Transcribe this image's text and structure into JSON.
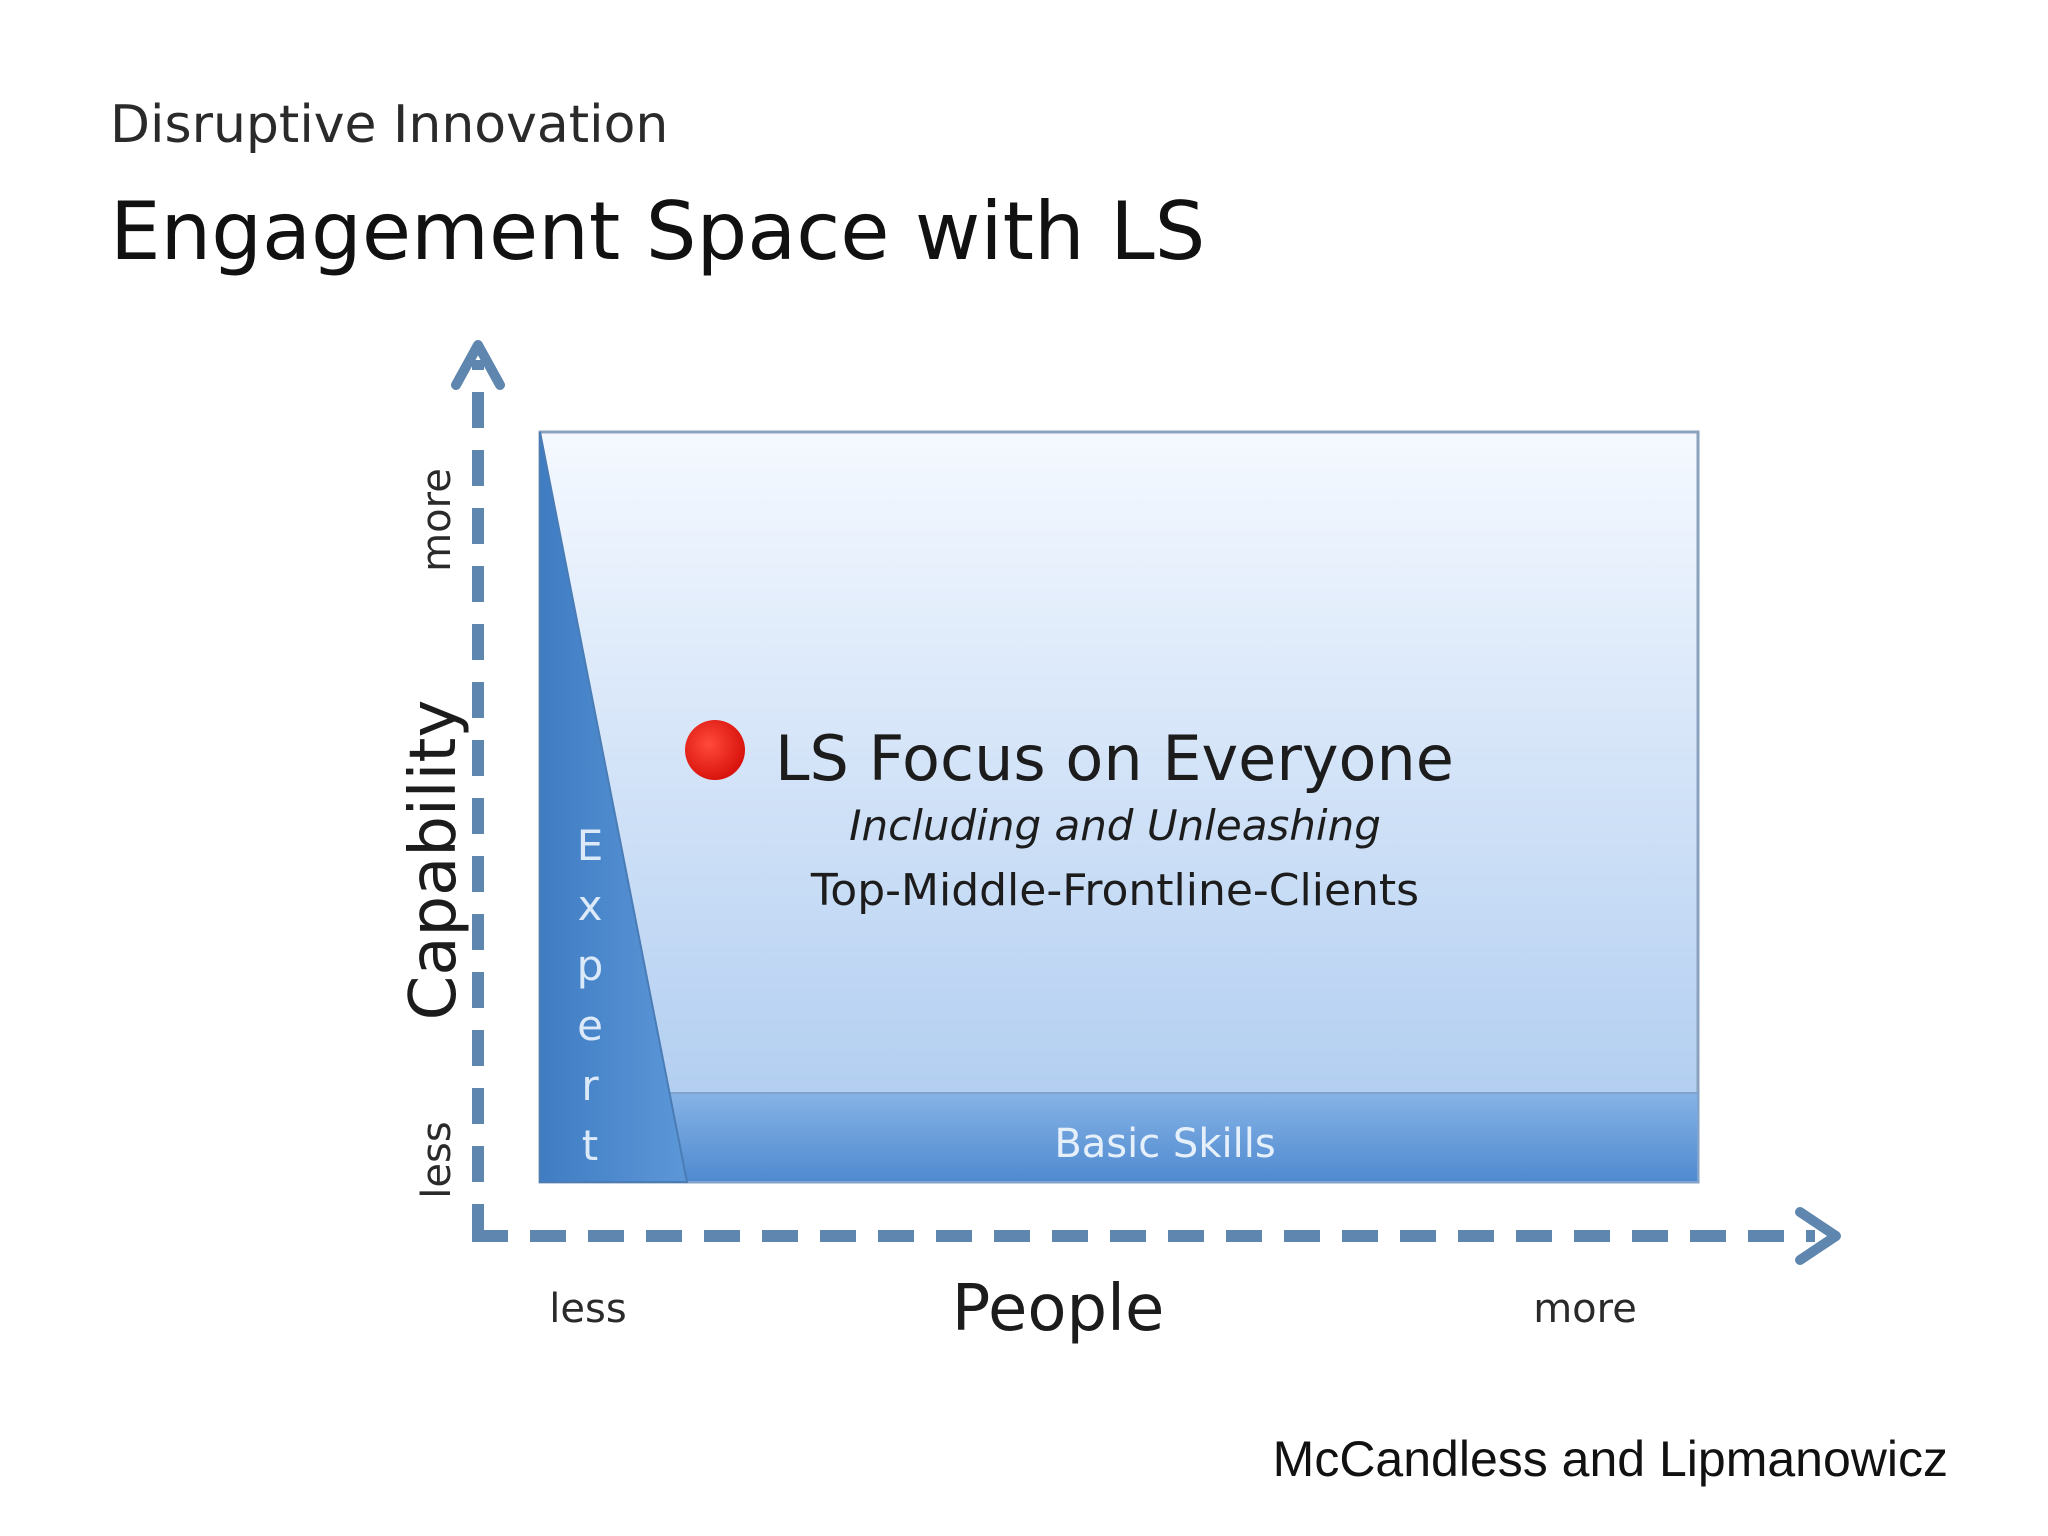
{
  "header": {
    "subtitle": "Disruptive Innovation",
    "title": "Engagement Space with LS"
  },
  "axes": {
    "y_label": "Capability",
    "y_low": "less",
    "y_high": "more",
    "x_label": "People",
    "x_low": "less",
    "x_high": "more"
  },
  "regions": {
    "expert": "Expert",
    "basic_skills": "Basic Skills"
  },
  "focus": {
    "heading": "LS Focus on Everyone",
    "subheading": "Including and Unleashing",
    "groups": "Top-Middle-Frontline-Clients"
  },
  "footer": {
    "credit": "McCandless and Lipmanowicz"
  },
  "colors": {
    "axis": "#5f86ae",
    "space_fill_top": "#f4f8fe",
    "space_fill_bottom": "#a9c8ee",
    "basic_band": "#5b96d6",
    "expert_wedge": "#4c86c8",
    "focus_dot": "#e8211c"
  }
}
